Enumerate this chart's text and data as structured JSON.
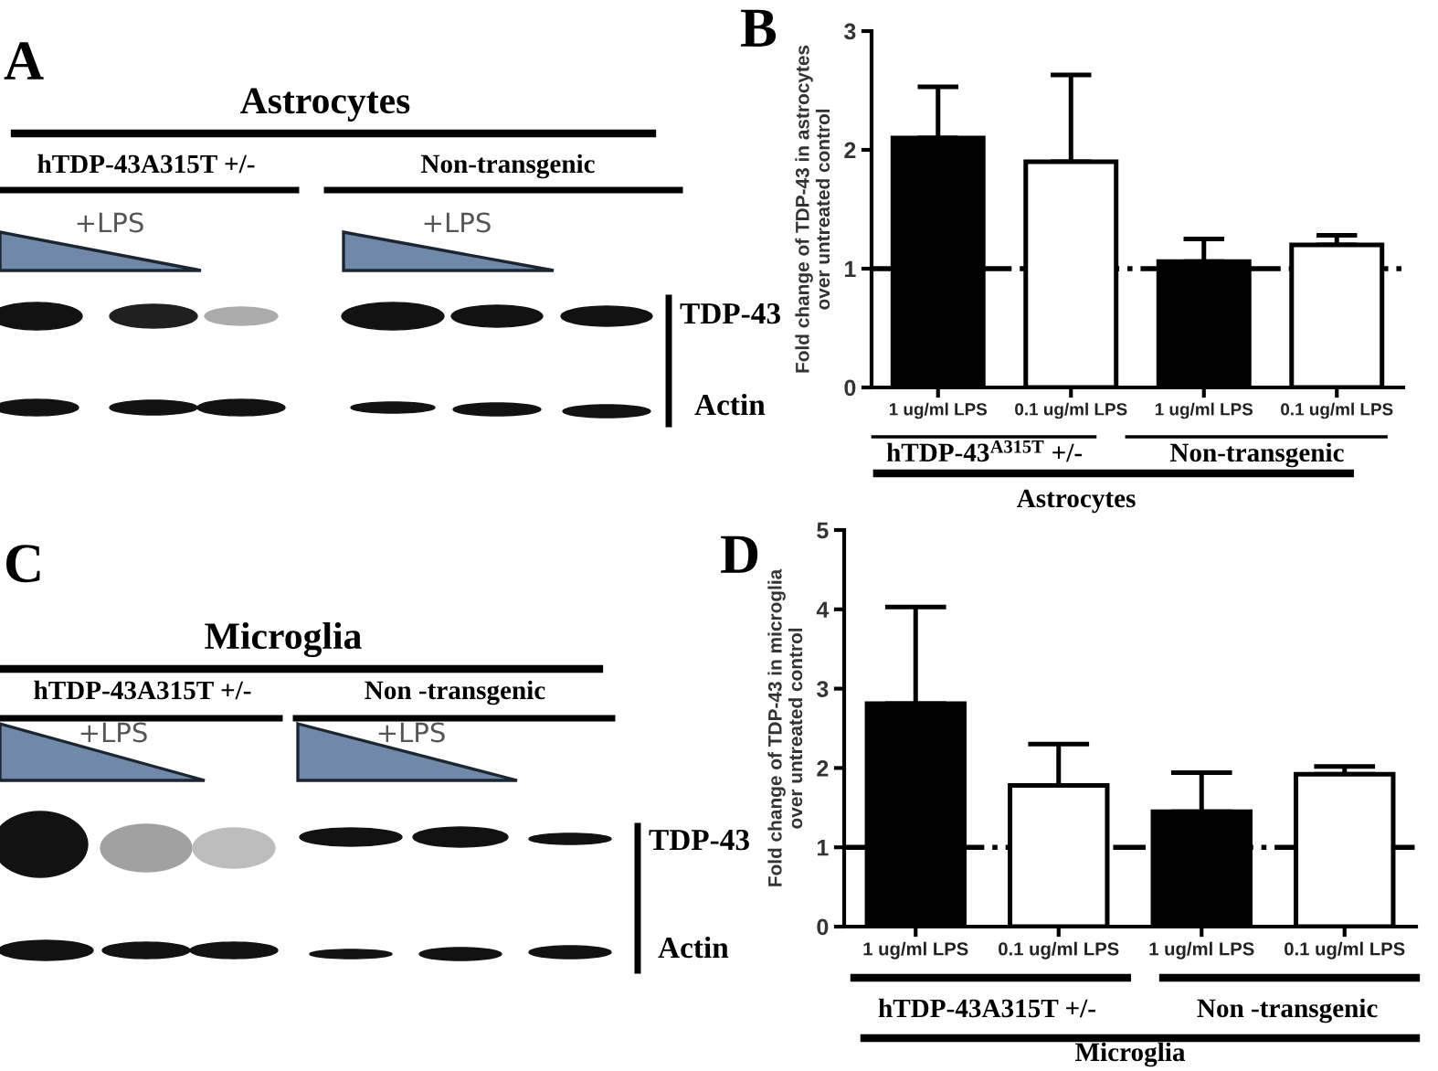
{
  "chart_data": [
    {
      "type": "other",
      "title": "Astrocytes",
      "annotations": [
        "A",
        "hTDP-43A315T +/-",
        "Non-transgenic",
        "+LPS",
        "+LPS",
        "TDP-43",
        "Actin"
      ]
    },
    {
      "type": "bar",
      "ylabel": "Fold change of TDP-43 in astrocytes\nover untreated control",
      "annotations": [
        "B",
        "hTDP-43$^{A315T}$ +/-",
        "Non-transgenic",
        "Astrocytes"
      ],
      "categories": [
        "1 ug/ml LPS",
        "0.1 ug/ml LPS",
        "1 ug/ml LPS",
        "0.1 ug/ml LPS"
      ],
      "values": [
        2.1,
        1.9,
        1.06,
        1.2
      ],
      "colors": [
        "#000000",
        "#ffffff",
        "#000000",
        "#ffffff"
      ],
      "errors": [
        [
          2.1,
          2.53
        ],
        [
          1.9,
          2.63
        ],
        [
          1.06,
          1.25
        ],
        [
          1.2,
          1.28
        ]
      ],
      "ylim": [
        0,
        3
      ],
      "yticks": [
        0,
        1,
        2,
        3
      ],
      "ref_lines": [
        {
          "axis": "y",
          "value": 1,
          "color": "#000000",
          "line_style": "dashdot"
        }
      ]
    },
    {
      "type": "other",
      "title": "Microglia",
      "annotations": [
        "C",
        "hTDP-43A315T +/-",
        "Non -transgenic",
        "+LPS",
        "+LPS",
        "TDP-43",
        "Actin"
      ]
    },
    {
      "type": "bar",
      "ylabel": "Fold change of TDP-43 in microglia\nover untreated control",
      "annotations": [
        "D",
        "hTDP-43A315T +/-",
        "Non -transgenic",
        "Microglia"
      ],
      "categories": [
        "1 ug/ml LPS",
        "0.1 ug/ml LPS",
        "1 ug/ml LPS",
        "0.1 ug/ml LPS"
      ],
      "values": [
        2.81,
        1.78,
        1.45,
        1.92
      ],
      "colors": [
        "#000000",
        "#ffffff",
        "#000000",
        "#ffffff"
      ],
      "errors": [
        [
          2.81,
          4.03
        ],
        [
          1.78,
          2.3
        ],
        [
          1.45,
          1.94
        ],
        [
          1.92,
          2.02
        ]
      ],
      "ylim": [
        0,
        5
      ],
      "yticks": [
        0,
        1,
        2,
        3,
        4,
        5
      ],
      "ref_lines": [
        {
          "axis": "y",
          "value": 1,
          "color": "#000000",
          "line_style": "dashdot"
        }
      ]
    }
  ]
}
